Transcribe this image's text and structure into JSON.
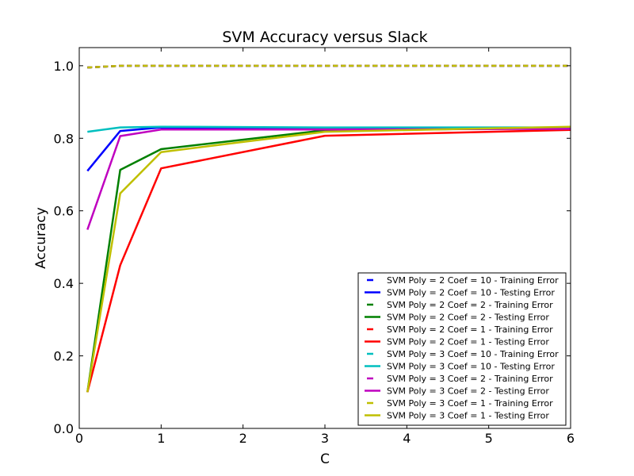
{
  "chart_data": {
    "type": "line",
    "title": "SVM Accuracy versus Slack",
    "xlabel": "C",
    "ylabel": "Accuracy",
    "xlim": [
      0,
      6
    ],
    "ylim": [
      0,
      1.05
    ],
    "xticks": [
      0,
      1,
      2,
      3,
      4,
      5,
      6
    ],
    "xtick_labels": [
      "0",
      "1",
      "2",
      "3",
      "4",
      "5",
      "6"
    ],
    "yticks": [
      0.0,
      0.2,
      0.4,
      0.6,
      0.8,
      1.0
    ],
    "ytick_labels": [
      "0.0",
      "0.2",
      "0.4",
      "0.6",
      "0.8",
      "1.0"
    ],
    "grid": false,
    "legend_position": "lower-right",
    "x": [
      0.1,
      0.5,
      1,
      3,
      6
    ],
    "series": [
      {
        "name": "SVM Poly = 2 Coef = 10 - Training Error",
        "color": "#0000ff",
        "dash": "dashed",
        "values": [
          0.995,
          1.0,
          1.0,
          1.0,
          1.0
        ]
      },
      {
        "name": "SVM Poly = 2 Coef = 10 - Testing Error",
        "color": "#0000ff",
        "dash": "solid",
        "values": [
          0.71,
          0.82,
          0.83,
          0.827,
          0.827
        ]
      },
      {
        "name": "SVM Poly = 2 Coef = 2 - Training Error",
        "color": "#008000",
        "dash": "dashed",
        "values": [
          0.995,
          1.0,
          1.0,
          1.0,
          1.0
        ]
      },
      {
        "name": "SVM Poly = 2 Coef = 2 - Testing Error",
        "color": "#008000",
        "dash": "solid",
        "values": [
          0.1,
          0.713,
          0.77,
          0.822,
          0.828
        ]
      },
      {
        "name": "SVM Poly = 2 Coef = 1 - Training Error",
        "color": "#ff0000",
        "dash": "dashed",
        "values": [
          0.995,
          1.0,
          1.0,
          1.0,
          1.0
        ]
      },
      {
        "name": "SVM Poly = 2 Coef = 1 - Testing Error",
        "color": "#ff0000",
        "dash": "solid",
        "values": [
          0.1,
          0.45,
          0.717,
          0.807,
          0.823
        ]
      },
      {
        "name": "SVM Poly = 3 Coef = 10 - Training Error",
        "color": "#00bfbf",
        "dash": "dashed",
        "values": [
          0.995,
          1.0,
          1.0,
          1.0,
          1.0
        ]
      },
      {
        "name": "SVM Poly = 3 Coef = 10 - Testing Error",
        "color": "#00bfbf",
        "dash": "solid",
        "values": [
          0.818,
          0.83,
          0.832,
          0.83,
          0.83
        ]
      },
      {
        "name": "SVM Poly = 3 Coef = 2 - Training Error",
        "color": "#bf00bf",
        "dash": "dashed",
        "values": [
          0.995,
          1.0,
          1.0,
          1.0,
          1.0
        ]
      },
      {
        "name": "SVM Poly = 3 Coef = 2 - Testing Error",
        "color": "#bf00bf",
        "dash": "solid",
        "values": [
          0.548,
          0.806,
          0.824,
          0.824,
          0.826
        ]
      },
      {
        "name": "SVM Poly = 3 Coef = 1 - Training Error",
        "color": "#bfbf00",
        "dash": "dashed",
        "values": [
          0.995,
          1.0,
          1.0,
          1.0,
          1.0
        ]
      },
      {
        "name": "SVM Poly = 3 Coef = 1 - Testing Error",
        "color": "#bfbf00",
        "dash": "solid",
        "values": [
          0.1,
          0.648,
          0.762,
          0.818,
          0.832
        ]
      }
    ]
  }
}
